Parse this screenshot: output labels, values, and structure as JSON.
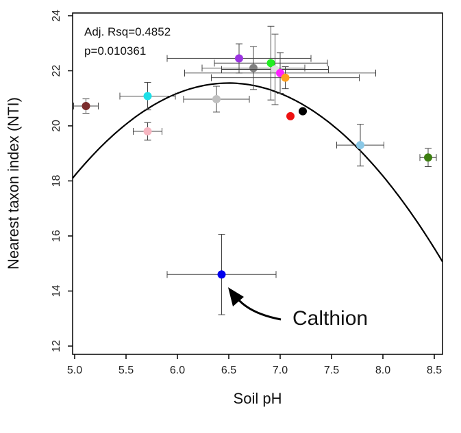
{
  "chart_data": {
    "type": "scatter",
    "xlabel": "Soil pH",
    "ylabel": "Nearest taxon index (NTI)",
    "xlim": [
      4.98,
      8.58
    ],
    "ylim": [
      11.7,
      24.1
    ],
    "xticks": [
      5.0,
      5.5,
      6.0,
      6.5,
      7.0,
      7.5,
      8.0,
      8.5
    ],
    "xtick_labels": [
      "5.0",
      "5.5",
      "6.0",
      "6.5",
      "7.0",
      "7.5",
      "8.0",
      "8.5"
    ],
    "yticks": [
      12,
      14,
      16,
      18,
      20,
      22,
      24
    ],
    "ytick_labels": [
      "12",
      "14",
      "16",
      "18",
      "20",
      "22",
      "24"
    ],
    "stats": [
      "Adj. Rsq=0.4852",
      "p=0.010361"
    ],
    "fit": {
      "type": "quadratic",
      "coefficients": [
        -41.71,
        19.47,
        -1.498
      ]
    },
    "points": [
      {
        "x": 5.11,
        "y": 20.72,
        "xerr": 0.12,
        "yerr": 0.26,
        "color": "#7b2c2c"
      },
      {
        "x": 5.71,
        "y": 21.08,
        "xerr": 0.27,
        "yerr": 0.5,
        "color": "#1ee0e8"
      },
      {
        "x": 5.71,
        "y": 19.8,
        "xerr": 0.14,
        "yerr": 0.32,
        "color": "#f6b6c1"
      },
      {
        "x": 6.38,
        "y": 20.97,
        "xerr": 0.32,
        "yerr": 0.47,
        "color": "#c0c0c0"
      },
      {
        "x": 6.6,
        "y": 22.45,
        "xerr": 0.7,
        "yerr": 0.53,
        "color": "#9b34e0"
      },
      {
        "x": 6.74,
        "y": 22.1,
        "xerr": 0.5,
        "yerr": 0.78,
        "color": "#808080"
      },
      {
        "x": 6.91,
        "y": 22.28,
        "xerr": 0.55,
        "yerr": 1.34,
        "color": "#22ee22"
      },
      {
        "x": 6.95,
        "y": 22.05,
        "xerr": 0.52,
        "yerr": 1.28,
        "color": "#e0e0e0"
      },
      {
        "x": 7.0,
        "y": 21.92,
        "xerr": 0.93,
        "yerr": 0.74,
        "color": "#ff21ff"
      },
      {
        "x": 7.05,
        "y": 21.75,
        "xerr": 0.72,
        "yerr": 0.4,
        "color": "#ffa01e"
      },
      {
        "x": 7.1,
        "y": 20.35,
        "xerr": 0,
        "yerr": 0,
        "color": "#ee1111"
      },
      {
        "x": 7.22,
        "y": 20.53,
        "xerr": 0,
        "yerr": 0,
        "color": "#000000"
      },
      {
        "x": 7.78,
        "y": 19.3,
        "xerr": 0.23,
        "yerr": 0.76,
        "color": "#8ac8e6"
      },
      {
        "x": 8.44,
        "y": 18.85,
        "xerr": 0.08,
        "yerr": 0.33,
        "color": "#3c7e10"
      },
      {
        "x": 6.43,
        "y": 14.6,
        "xerr": 0.53,
        "yerr": 1.46,
        "color": "#0000ee"
      }
    ],
    "annotation": {
      "text": "Calthion",
      "target": {
        "x": 6.43,
        "y": 14.6
      }
    }
  }
}
